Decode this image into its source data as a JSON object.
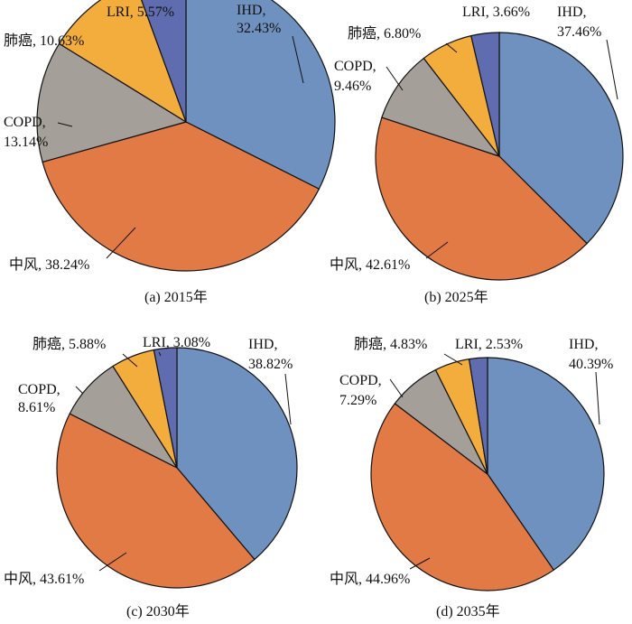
{
  "chart_data": [
    {
      "type": "pie",
      "caption": "(a)  2015年",
      "slices": [
        {
          "label": "IHD",
          "value": 32.43,
          "text": "32.43%"
        },
        {
          "label": "中风",
          "value": 38.24,
          "text": "38.24%"
        },
        {
          "label": "COPD",
          "value": 13.14,
          "text": "13.14%"
        },
        {
          "label": "肺癌",
          "value": 10.63,
          "text": "10.63%"
        },
        {
          "label": "LRI",
          "value": 5.57,
          "text": "5.57%"
        }
      ]
    },
    {
      "type": "pie",
      "caption": "(b)  2025年",
      "slices": [
        {
          "label": "IHD",
          "value": 37.46,
          "text": "37.46%"
        },
        {
          "label": "中风",
          "value": 42.61,
          "text": "42.61%"
        },
        {
          "label": "COPD",
          "value": 9.46,
          "text": "9.46%"
        },
        {
          "label": "肺癌",
          "value": 6.8,
          "text": "6.80%"
        },
        {
          "label": "LRI",
          "value": 3.66,
          "text": "3.66%"
        }
      ]
    },
    {
      "type": "pie",
      "caption": "(c)  2030年",
      "slices": [
        {
          "label": "IHD",
          "value": 38.82,
          "text": "38.82%"
        },
        {
          "label": "中风",
          "value": 43.61,
          "text": "43.61%"
        },
        {
          "label": "COPD",
          "value": 8.61,
          "text": "8.61%"
        },
        {
          "label": "肺癌",
          "value": 5.88,
          "text": "5.88%"
        },
        {
          "label": "LRI",
          "value": 3.08,
          "text": "3.08%"
        }
      ]
    },
    {
      "type": "pie",
      "caption": "(d)  2035年",
      "slices": [
        {
          "label": "IHD",
          "value": 40.39,
          "text": "40.39%"
        },
        {
          "label": "中风",
          "value": 44.96,
          "text": "44.96%"
        },
        {
          "label": "COPD",
          "value": 7.29,
          "text": "7.29%"
        },
        {
          "label": "肺癌",
          "value": 4.83,
          "text": "4.83%"
        },
        {
          "label": "LRI",
          "value": 2.53,
          "text": "2.53%"
        }
      ]
    }
  ],
  "colors": {
    "IHD": "#6f91bf",
    "中风": "#e17a45",
    "COPD": "#a59f99",
    "肺癌": "#f3ad3d",
    "LRI": "#5f6db0"
  }
}
